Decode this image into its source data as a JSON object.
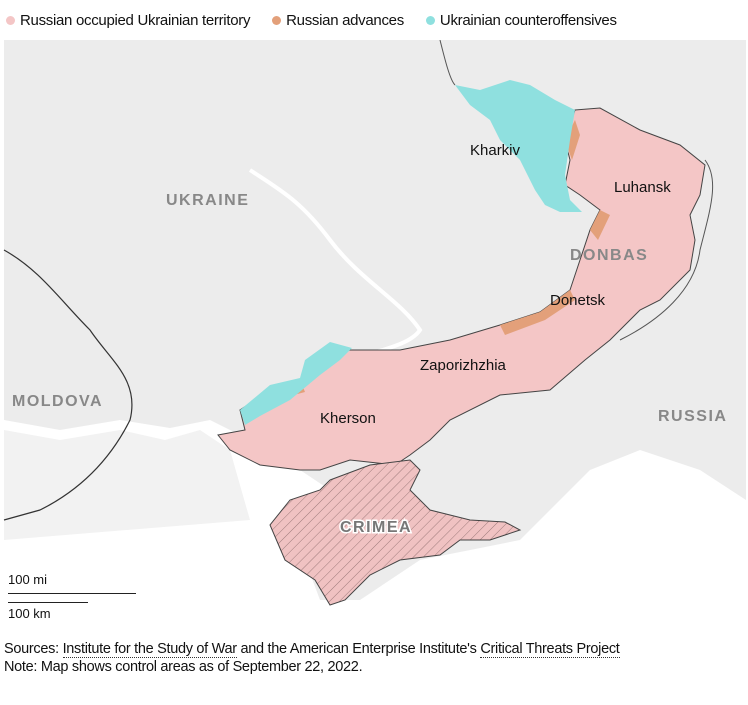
{
  "legend": [
    {
      "label": "Russian occupied Ukrainian territory",
      "color": "#f4c6c6"
    },
    {
      "label": "Russian advances",
      "color": "#e3a07a"
    },
    {
      "label": "Ukrainian counteroffensives",
      "color": "#8fe0df"
    }
  ],
  "map": {
    "labels": {
      "kharkiv": "Kharkiv",
      "luhansk": "Luhansk",
      "donbas": "DONBAS",
      "donetsk": "Donetsk",
      "zaporizhzhia": "Zaporizhzhia",
      "kherson": "Kherson",
      "crimea": "CRIMEA",
      "ukraine": "UKRAINE",
      "moldova": "MOLDOVA",
      "russia": "RUSSIA"
    },
    "scale": {
      "miles": "100 mi",
      "km": "100 km"
    }
  },
  "footer": {
    "sources_prefix": "Sources: ",
    "source1": "Institute for the Study of War",
    "sources_mid": " and the American Enterprise Institute's ",
    "source2": "Critical Threats Project",
    "note": "Note: Map shows control areas as of September 22, 2022."
  }
}
